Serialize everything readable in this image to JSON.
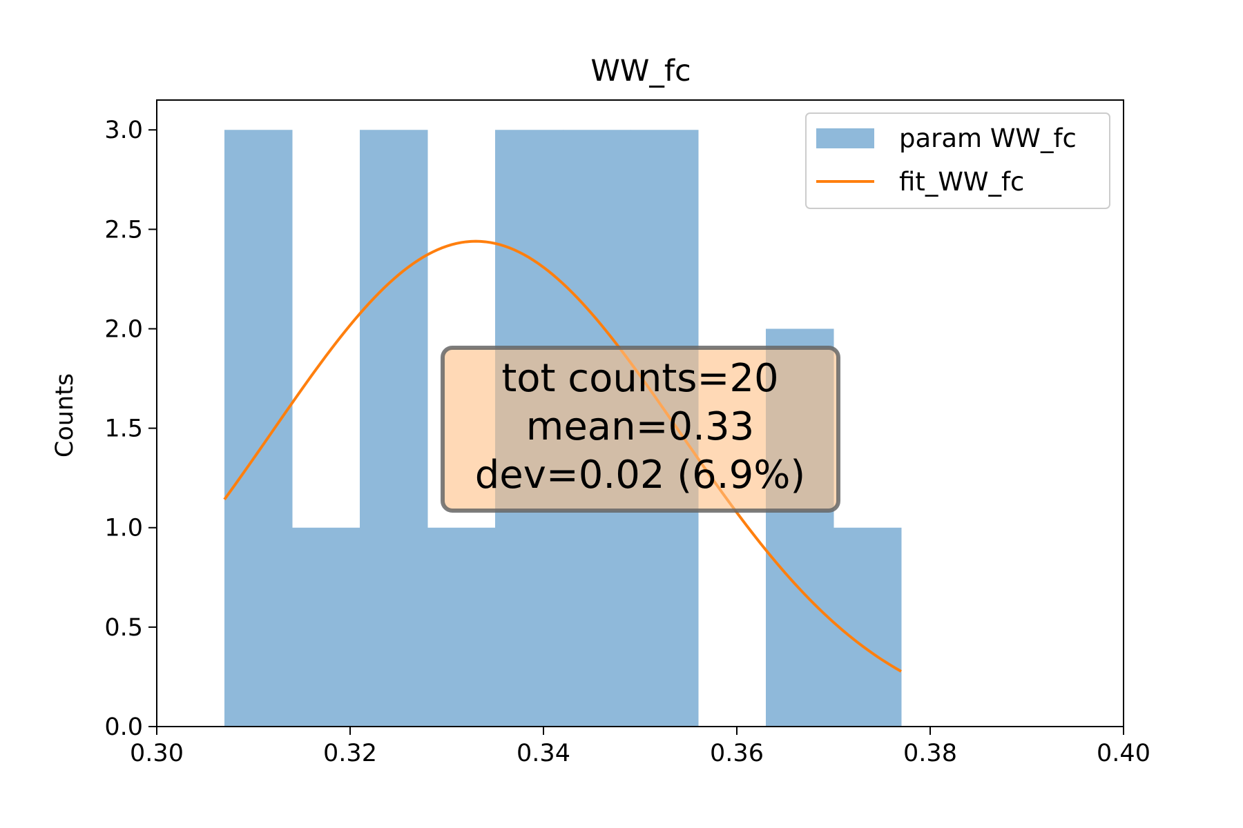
{
  "chart_data": {
    "type": "bar",
    "title": "WW_fc",
    "xlabel": "",
    "ylabel": "Counts",
    "xlim": [
      0.3,
      0.4
    ],
    "ylim": [
      0.0,
      3.15
    ],
    "xticks": [
      0.3,
      0.32,
      0.34,
      0.36,
      0.38,
      0.4
    ],
    "xtick_labels": [
      "0.30",
      "0.32",
      "0.34",
      "0.36",
      "0.38",
      "0.40"
    ],
    "yticks": [
      0.0,
      0.5,
      1.0,
      1.5,
      2.0,
      2.5,
      3.0
    ],
    "ytick_labels": [
      "0.0",
      "0.5",
      "1.0",
      "1.5",
      "2.0",
      "2.5",
      "3.0"
    ],
    "grid": false,
    "legend_position": "top-right",
    "series": [
      {
        "name": "param WW_fc",
        "kind": "histogram",
        "color": "#8fb9da",
        "bin_edges": [
          0.307,
          0.314,
          0.321,
          0.328,
          0.335,
          0.342,
          0.349,
          0.356,
          0.363,
          0.37,
          0.377
        ],
        "counts": [
          3,
          1,
          3,
          1,
          3,
          3,
          3,
          0,
          2,
          1
        ]
      },
      {
        "name": "fit_WW_fc",
        "kind": "line",
        "color": "#ff7f0e",
        "fit": {
          "amplitude": 2.44,
          "mean": 0.333,
          "sigma": 0.0211,
          "x_range": [
            0.307,
            0.377
          ]
        }
      }
    ],
    "annotation": {
      "lines": [
        "tot counts=20",
        "mean=0.33",
        "dev=0.02 (6.9%)"
      ],
      "facecolor": "#ffbf86",
      "edgecolor": "#666666"
    }
  }
}
